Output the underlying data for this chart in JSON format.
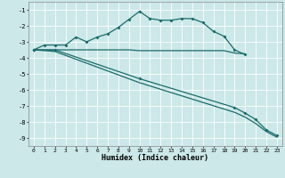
{
  "xlabel": "Humidex (Indice chaleur)",
  "xlim": [
    -0.5,
    23.5
  ],
  "ylim": [
    -9.5,
    -0.5
  ],
  "yticks": [
    -9,
    -8,
    -7,
    -6,
    -5,
    -4,
    -3,
    -2,
    -1
  ],
  "xticks": [
    0,
    1,
    2,
    3,
    4,
    5,
    6,
    7,
    8,
    9,
    10,
    11,
    12,
    13,
    14,
    15,
    16,
    17,
    18,
    19,
    20,
    21,
    22,
    23
  ],
  "bg_color": "#cce8e8",
  "line_color": "#1a6b6b",
  "grid_color": "#f0f0f0",
  "curve1_x": [
    0,
    1,
    2,
    3,
    4,
    5,
    6,
    7,
    8,
    9,
    10,
    11,
    12,
    13,
    14,
    15,
    16,
    17,
    18,
    19,
    20
  ],
  "curve1_y": [
    -3.5,
    -3.2,
    -3.2,
    -3.2,
    -2.7,
    -3.0,
    -2.7,
    -2.5,
    -2.1,
    -1.6,
    -1.1,
    -1.55,
    -1.65,
    -1.65,
    -1.55,
    -1.55,
    -1.8,
    -2.35,
    -2.65,
    -3.5,
    -3.8
  ],
  "curve2_x": [
    0,
    2,
    3,
    9,
    10,
    18,
    19,
    20
  ],
  "curve2_y": [
    -3.5,
    -3.5,
    -3.5,
    -3.5,
    -3.55,
    -3.55,
    -3.7,
    -3.75
  ],
  "curve3_x": [
    0,
    2,
    10,
    19,
    20,
    21,
    22,
    23
  ],
  "curve3_y": [
    -3.5,
    -3.5,
    -5.3,
    -7.1,
    -7.45,
    -7.85,
    -8.5,
    -8.85
  ],
  "curve4_x": [
    0,
    2,
    10,
    19,
    20,
    21,
    22,
    23
  ],
  "curve4_y": [
    -3.5,
    -3.6,
    -5.55,
    -7.4,
    -7.7,
    -8.1,
    -8.6,
    -8.95
  ]
}
